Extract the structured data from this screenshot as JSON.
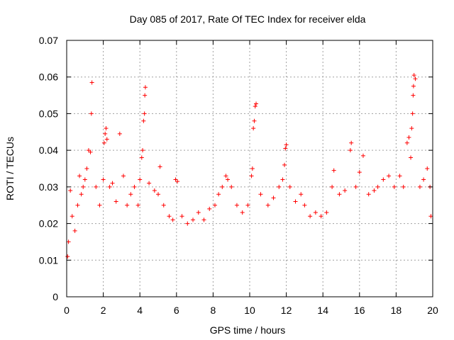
{
  "chart_data": {
    "type": "scatter",
    "title": "Day 085 of 2017, Rate Of TEC Index for receiver elda",
    "xlabel": "GPS time / hours",
    "ylabel": "ROTI / TECUs",
    "xlim": [
      0,
      20
    ],
    "ylim": [
      0,
      0.07
    ],
    "xticks": [
      "0",
      "2",
      "4",
      "6",
      "8",
      "10",
      "12",
      "14",
      "16",
      "18",
      "20"
    ],
    "yticks": [
      "0",
      "0.01",
      "0.02",
      "0.03",
      "0.04",
      "0.05",
      "0.06",
      "0.07"
    ],
    "grid": true,
    "marker": "+",
    "color": "#ff0000",
    "series": [
      {
        "points": [
          [
            0.05,
            0.011
          ],
          [
            0.1,
            0.015
          ],
          [
            0.2,
            0.029
          ],
          [
            0.3,
            0.022
          ],
          [
            0.45,
            0.018
          ],
          [
            0.6,
            0.025
          ],
          [
            0.7,
            0.033
          ],
          [
            0.8,
            0.028
          ],
          [
            0.9,
            0.03
          ],
          [
            1.0,
            0.032
          ],
          [
            1.1,
            0.035
          ],
          [
            1.2,
            0.04
          ],
          [
            1.3,
            0.0395
          ],
          [
            1.35,
            0.05
          ],
          [
            1.38,
            0.0585
          ],
          [
            1.6,
            0.03
          ],
          [
            1.8,
            0.025
          ],
          [
            2.0,
            0.032
          ],
          [
            2.05,
            0.042
          ],
          [
            2.1,
            0.0445
          ],
          [
            2.15,
            0.046
          ],
          [
            2.2,
            0.043
          ],
          [
            2.35,
            0.03
          ],
          [
            2.5,
            0.031
          ],
          [
            2.7,
            0.026
          ],
          [
            2.9,
            0.0445
          ],
          [
            3.1,
            0.033
          ],
          [
            3.3,
            0.025
          ],
          [
            3.5,
            0.028
          ],
          [
            3.7,
            0.03
          ],
          [
            3.9,
            0.025
          ],
          [
            4.0,
            0.032
          ],
          [
            4.1,
            0.038
          ],
          [
            4.15,
            0.04
          ],
          [
            4.2,
            0.048
          ],
          [
            4.25,
            0.05
          ],
          [
            4.27,
            0.055
          ],
          [
            4.3,
            0.0572
          ],
          [
            4.5,
            0.031
          ],
          [
            4.8,
            0.029
          ],
          [
            5.0,
            0.028
          ],
          [
            5.1,
            0.0355
          ],
          [
            5.3,
            0.025
          ],
          [
            5.6,
            0.022
          ],
          [
            5.8,
            0.021
          ],
          [
            5.95,
            0.032
          ],
          [
            6.05,
            0.0315
          ],
          [
            6.3,
            0.022
          ],
          [
            6.6,
            0.02
          ],
          [
            6.9,
            0.021
          ],
          [
            7.2,
            0.023
          ],
          [
            7.5,
            0.021
          ],
          [
            7.8,
            0.024
          ],
          [
            8.1,
            0.025
          ],
          [
            8.3,
            0.028
          ],
          [
            8.5,
            0.03
          ],
          [
            8.7,
            0.033
          ],
          [
            8.8,
            0.032
          ],
          [
            9.0,
            0.03
          ],
          [
            9.3,
            0.025
          ],
          [
            9.6,
            0.023
          ],
          [
            9.9,
            0.025
          ],
          [
            10.1,
            0.033
          ],
          [
            10.15,
            0.035
          ],
          [
            10.2,
            0.046
          ],
          [
            10.25,
            0.048
          ],
          [
            10.3,
            0.052
          ],
          [
            10.35,
            0.0527
          ],
          [
            10.6,
            0.028
          ],
          [
            11.0,
            0.025
          ],
          [
            11.3,
            0.027
          ],
          [
            11.6,
            0.03
          ],
          [
            11.8,
            0.032
          ],
          [
            11.9,
            0.036
          ],
          [
            11.95,
            0.0405
          ],
          [
            12.0,
            0.0415
          ],
          [
            12.2,
            0.03
          ],
          [
            12.5,
            0.026
          ],
          [
            12.8,
            0.028
          ],
          [
            13.0,
            0.025
          ],
          [
            13.3,
            0.022
          ],
          [
            13.6,
            0.023
          ],
          [
            13.9,
            0.022
          ],
          [
            14.2,
            0.023
          ],
          [
            14.5,
            0.03
          ],
          [
            14.6,
            0.0345
          ],
          [
            14.9,
            0.028
          ],
          [
            15.2,
            0.029
          ],
          [
            15.5,
            0.04
          ],
          [
            15.55,
            0.042
          ],
          [
            15.8,
            0.03
          ],
          [
            16.0,
            0.034
          ],
          [
            16.2,
            0.0385
          ],
          [
            16.5,
            0.028
          ],
          [
            16.8,
            0.029
          ],
          [
            17.0,
            0.03
          ],
          [
            17.3,
            0.032
          ],
          [
            17.6,
            0.033
          ],
          [
            17.9,
            0.03
          ],
          [
            18.2,
            0.033
          ],
          [
            18.4,
            0.03
          ],
          [
            18.6,
            0.042
          ],
          [
            18.7,
            0.0435
          ],
          [
            18.8,
            0.038
          ],
          [
            18.85,
            0.046
          ],
          [
            18.9,
            0.05
          ],
          [
            18.93,
            0.055
          ],
          [
            18.95,
            0.0575
          ],
          [
            18.98,
            0.0605
          ],
          [
            19.05,
            0.0595
          ],
          [
            19.3,
            0.03
          ],
          [
            19.5,
            0.032
          ],
          [
            19.7,
            0.035
          ],
          [
            19.85,
            0.03
          ],
          [
            19.9,
            0.022
          ]
        ]
      }
    ]
  }
}
